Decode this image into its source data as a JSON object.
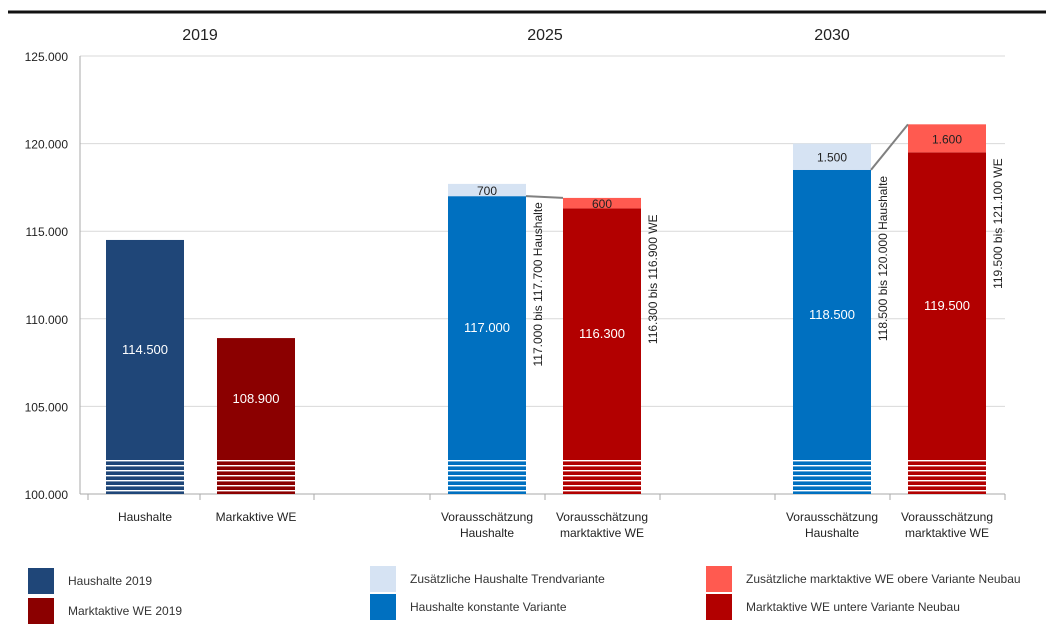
{
  "chart_data": {
    "type": "bar",
    "stacked": true,
    "ylim": [
      100000,
      125000
    ],
    "yticks": [
      "100.000",
      "105.000",
      "110.000",
      "115.000",
      "120.000",
      "125.000"
    ],
    "ytick_values": [
      100000,
      105000,
      110000,
      115000,
      120000,
      125000
    ],
    "groups": [
      "2019",
      "2025",
      "2030"
    ],
    "bars": [
      {
        "group": "2019",
        "label": "Haushalte",
        "base": 114500,
        "base_label": "114.500",
        "base_color": "#1f4678"
      },
      {
        "group": "2019",
        "label": "Markaktive WE",
        "base": 108900,
        "base_label": "108.900",
        "base_color": "#8b0000"
      },
      {
        "group": "2025",
        "label": "Vorausschätzung\nHaushalte",
        "base": 117000,
        "base_label": "117.000",
        "base_color": "#0070c0",
        "add": 700,
        "add_label": "700",
        "add_color": "#d6e3f3",
        "range_label": "117.000  bis 117.700 Haushalte"
      },
      {
        "group": "2025",
        "label": "Vorausschätzung\nmarktaktive WE",
        "base": 116300,
        "base_label": "116.300",
        "base_color": "#b20000",
        "add": 600,
        "add_label": "600",
        "add_color": "#ff5a50",
        "range_label": "116.300 bis 116.900 WE"
      },
      {
        "group": "2030",
        "label": "Vorausschätzung\nHaushalte",
        "base": 118500,
        "base_label": "118.500",
        "base_color": "#0070c0",
        "add": 1500,
        "add_label": "1.500",
        "add_color": "#d6e3f3",
        "range_label": "118.500 bis 120.000 Haushalte"
      },
      {
        "group": "2030",
        "label": "Vorausschätzung\nmarktaktive WE",
        "base": 119500,
        "base_label": "119.500",
        "base_color": "#b20000",
        "add": 1600,
        "add_label": "1.600",
        "add_color": "#ff5a50",
        "range_label": "119.500 bis 121.100 WE"
      }
    ],
    "legend": [
      {
        "label": "Haushalte 2019",
        "color": "#1f4678"
      },
      {
        "label": "Marktaktive WE 2019",
        "color": "#8b0000"
      },
      {
        "label": "Zusätzliche Haushalte Trendvariante",
        "color": "#d6e3f3"
      },
      {
        "label": "Haushalte konstante Variante",
        "color": "#0070c0"
      },
      {
        "label": "Zusätzliche marktaktive WE obere Variante Neubau",
        "color": "#ff5a50"
      },
      {
        "label": "Marktaktive WE untere Variante Neubau",
        "color": "#b20000"
      }
    ]
  }
}
